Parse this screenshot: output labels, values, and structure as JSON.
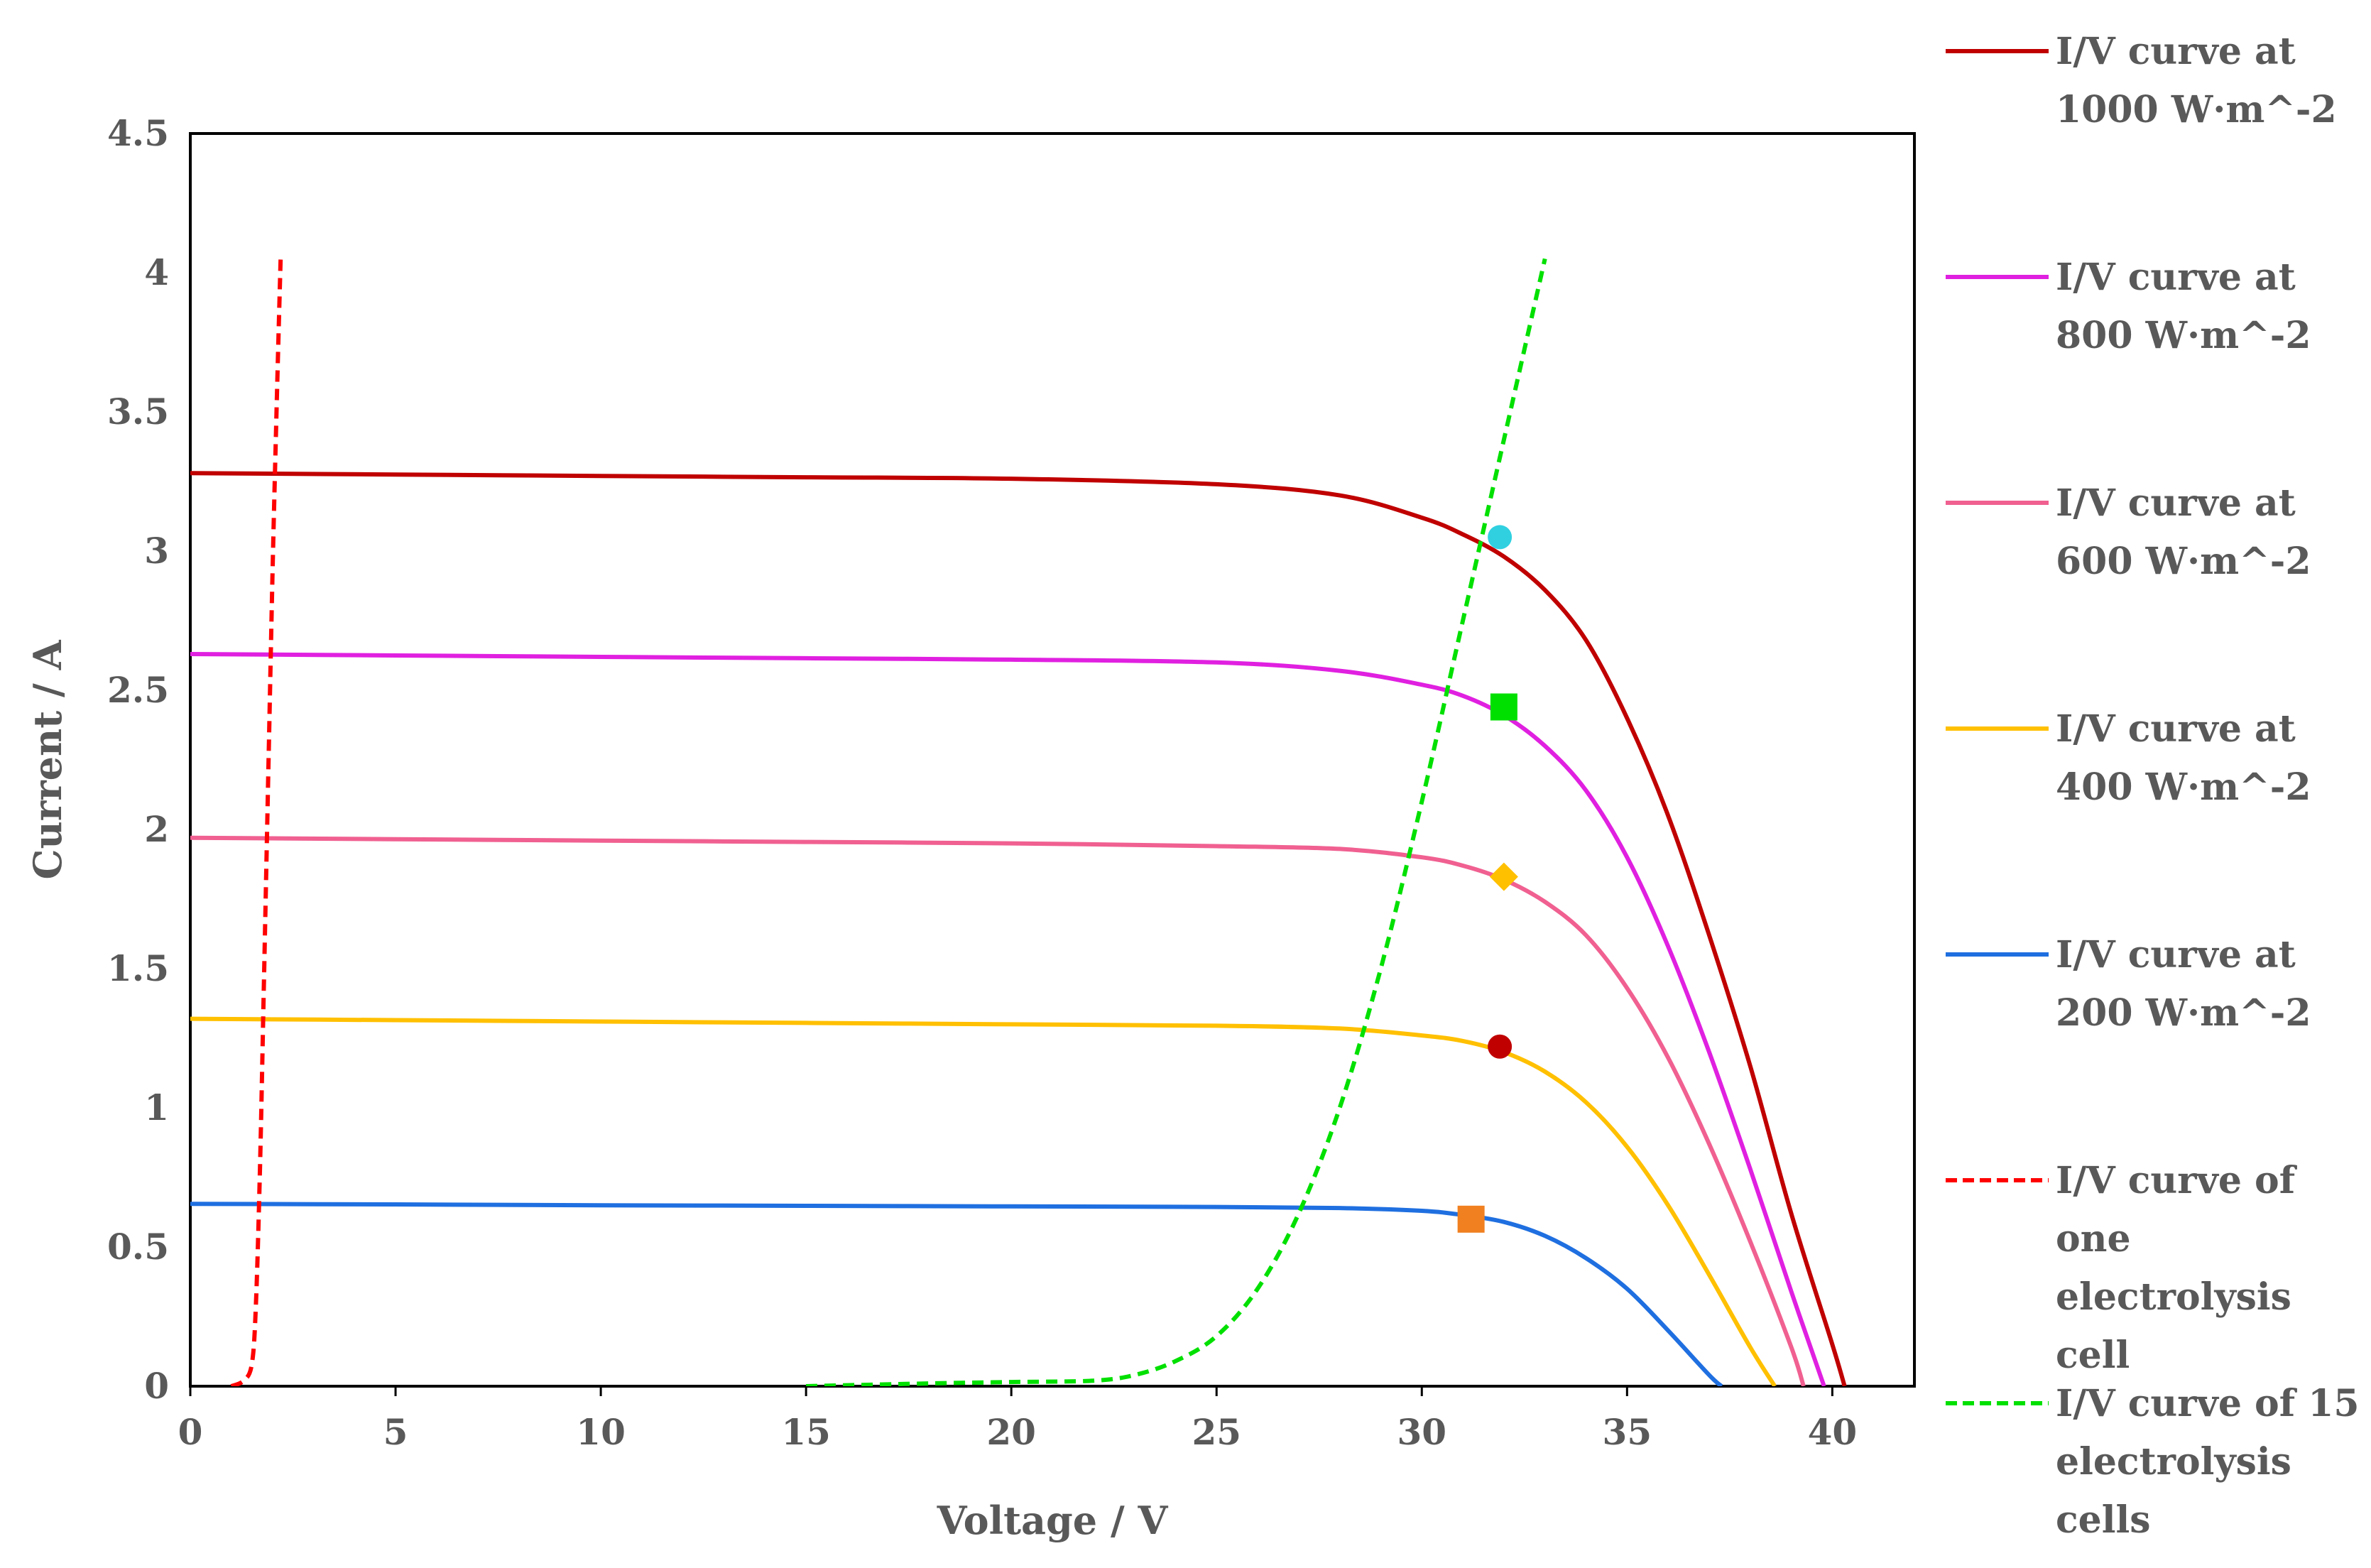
{
  "chart_data": {
    "type": "line",
    "title": "",
    "xlabel": "Voltage / V",
    "ylabel": "Current / A",
    "xlim": [
      0,
      42
    ],
    "ylim": [
      0,
      4.5
    ],
    "xticks": [
      "0",
      "5",
      "10",
      "15",
      "20",
      "25",
      "30",
      "35",
      "40"
    ],
    "yticks": [
      "0",
      "0.5",
      "1",
      "1.5",
      "2",
      "2.5",
      "3",
      "3.5",
      "4",
      "4.5"
    ],
    "grid": false,
    "legend_position": "right",
    "series": [
      {
        "name": "I/V curve at 1000 W·m^-2",
        "color": "#c00000",
        "dash": "solid",
        "x": [
          0,
          5,
          10,
          15,
          20,
          25,
          28,
          30,
          31,
          32,
          33,
          34,
          35,
          36,
          37,
          38,
          39,
          40,
          40.3
        ],
        "y": [
          3.28,
          3.275,
          3.27,
          3.265,
          3.26,
          3.24,
          3.2,
          3.12,
          3.06,
          2.98,
          2.86,
          2.68,
          2.4,
          2.05,
          1.62,
          1.15,
          0.62,
          0.15,
          0
        ]
      },
      {
        "name": "I/V curve at 800 W·m^-2",
        "color": "#e020e0",
        "dash": "solid",
        "x": [
          0,
          5,
          10,
          15,
          20,
          25,
          28,
          30,
          31,
          32,
          33,
          34,
          35,
          36,
          37,
          38,
          39,
          39.8
        ],
        "y": [
          2.63,
          2.625,
          2.62,
          2.615,
          2.61,
          2.6,
          2.57,
          2.52,
          2.48,
          2.41,
          2.3,
          2.14,
          1.9,
          1.58,
          1.2,
          0.78,
          0.34,
          0
        ]
      },
      {
        "name": "I/V curve at 600 W·m^-2",
        "color": "#f06090",
        "dash": "solid",
        "x": [
          0,
          5,
          10,
          15,
          20,
          25,
          28,
          30,
          31,
          32,
          33,
          34,
          35,
          36,
          37,
          38,
          39,
          39.3
        ],
        "y": [
          1.97,
          1.965,
          1.96,
          1.955,
          1.95,
          1.94,
          1.93,
          1.9,
          1.87,
          1.82,
          1.74,
          1.62,
          1.43,
          1.18,
          0.87,
          0.52,
          0.14,
          0
        ]
      },
      {
        "name": "I/V curve at 400 W·m^-2",
        "color": "#ffc000",
        "dash": "solid",
        "x": [
          0,
          5,
          10,
          15,
          20,
          25,
          28,
          30,
          31,
          32,
          33,
          34,
          35,
          36,
          37,
          38,
          38.6
        ],
        "y": [
          1.32,
          1.315,
          1.31,
          1.305,
          1.3,
          1.295,
          1.285,
          1.26,
          1.24,
          1.2,
          1.13,
          1.02,
          0.86,
          0.65,
          0.4,
          0.14,
          0
        ]
      },
      {
        "name": "I/V curve at 200 W·m^-2",
        "color": "#1f6fe0",
        "dash": "solid",
        "x": [
          0,
          5,
          10,
          15,
          20,
          25,
          28,
          30,
          31,
          32,
          33,
          34,
          35,
          36,
          37,
          37.3
        ],
        "y": [
          0.655,
          0.653,
          0.65,
          0.648,
          0.646,
          0.644,
          0.64,
          0.63,
          0.615,
          0.59,
          0.54,
          0.46,
          0.35,
          0.2,
          0.04,
          0
        ]
      },
      {
        "name": "I/V curve of one electrolysis cell",
        "color": "#ff0000",
        "dash": "dashed",
        "x": [
          1.0,
          1.3,
          1.5,
          1.6,
          1.7,
          1.8,
          1.9,
          2.0,
          2.1,
          2.2
        ],
        "y": [
          0,
          0.02,
          0.08,
          0.3,
          0.8,
          1.5,
          2.2,
          2.9,
          3.5,
          4.05
        ]
      },
      {
        "name": "I/V curve of 15 electrolysis cells",
        "color": "#00e000",
        "dash": "dashed",
        "x": [
          15,
          18,
          20,
          22,
          23,
          24,
          25,
          26,
          27,
          28,
          29,
          30,
          31,
          32,
          33
        ],
        "y": [
          0,
          0.01,
          0.015,
          0.02,
          0.04,
          0.09,
          0.18,
          0.35,
          0.62,
          1.0,
          1.5,
          2.1,
          2.75,
          3.4,
          4.05
        ]
      }
    ],
    "markers": [
      {
        "shape": "circle",
        "color": "#30d0e0",
        "x": 31.9,
        "y": 3.05
      },
      {
        "shape": "square",
        "color": "#00e000",
        "x": 32.0,
        "y": 2.44
      },
      {
        "shape": "diamond",
        "color": "#ffc000",
        "x": 32.0,
        "y": 1.83
      },
      {
        "shape": "circle",
        "color": "#c00000",
        "x": 31.9,
        "y": 1.22
      },
      {
        "shape": "square",
        "color": "#f08020",
        "x": 31.2,
        "y": 0.6
      }
    ],
    "legend": [
      {
        "lines": [
          "I/V curve at",
          "1000 W·m^-2"
        ],
        "color": "#c00000",
        "dash": "solid"
      },
      {
        "lines": [
          "I/V curve at",
          "800 W·m^-2"
        ],
        "color": "#e020e0",
        "dash": "solid"
      },
      {
        "lines": [
          "I/V curve at",
          "600 W·m^-2"
        ],
        "color": "#f06090",
        "dash": "solid"
      },
      {
        "lines": [
          "I/V curve at",
          "400 W·m^-2"
        ],
        "color": "#ffc000",
        "dash": "solid"
      },
      {
        "lines": [
          "I/V curve at",
          "200 W·m^-2"
        ],
        "color": "#1f6fe0",
        "dash": "solid"
      },
      {
        "lines": [
          "I/V curve of",
          "one",
          "electrolysis",
          "cell"
        ],
        "color": "#ff0000",
        "dash": "dashed"
      },
      {
        "lines": [
          "I/V curve of 15",
          "electrolysis",
          "cells"
        ],
        "color": "#00e000",
        "dash": "dashed"
      }
    ]
  }
}
